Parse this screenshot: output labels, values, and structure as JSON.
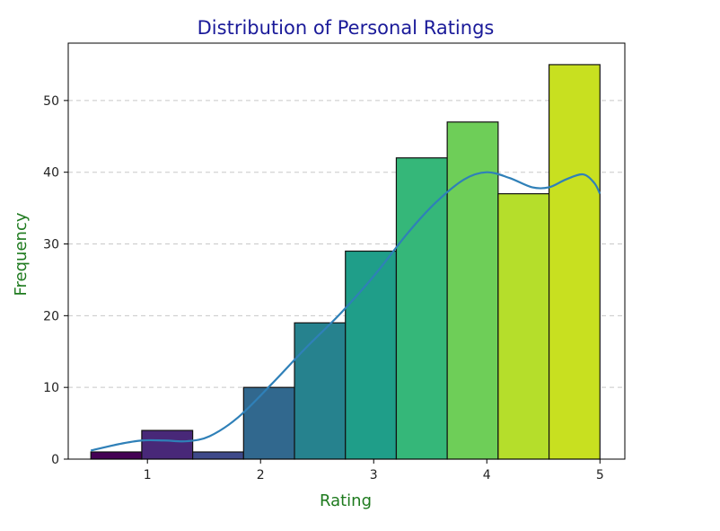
{
  "chart_data": {
    "type": "bar",
    "title": "Distribution of Personal Ratings",
    "xlabel": "Rating",
    "ylabel": "Frequency",
    "xlim": [
      0.3,
      5.22
    ],
    "ylim": [
      0,
      58
    ],
    "xticks": [
      1,
      2,
      3,
      4,
      5
    ],
    "yticks": [
      0,
      10,
      20,
      30,
      40,
      50
    ],
    "grid": "y-dashed",
    "bin_edges": [
      0.5,
      0.95,
      1.4,
      1.85,
      2.3,
      2.75,
      3.2,
      3.65,
      4.1,
      4.55,
      5.0
    ],
    "values": [
      1,
      4,
      1,
      10,
      19,
      29,
      42,
      47,
      37,
      55
    ],
    "bar_colors": [
      "#440154",
      "#482878",
      "#3e4989",
      "#31688e",
      "#26828e",
      "#1f9e89",
      "#35b779",
      "#6ece58",
      "#b5de2b",
      "#c8e020"
    ],
    "kde": {
      "color": "#2f80b8",
      "points": [
        [
          0.5,
          1.2
        ],
        [
          0.75,
          2.1
        ],
        [
          0.95,
          2.6
        ],
        [
          1.15,
          2.6
        ],
        [
          1.35,
          2.5
        ],
        [
          1.55,
          3.2
        ],
        [
          1.8,
          5.8
        ],
        [
          2.1,
          10.5
        ],
        [
          2.4,
          15.5
        ],
        [
          2.7,
          20.2
        ],
        [
          3.0,
          25.5
        ],
        [
          3.3,
          31.5
        ],
        [
          3.55,
          35.8
        ],
        [
          3.8,
          39.0
        ],
        [
          4.0,
          40.0
        ],
        [
          4.2,
          39.2
        ],
        [
          4.4,
          37.9
        ],
        [
          4.55,
          37.9
        ],
        [
          4.7,
          39.0
        ],
        [
          4.85,
          39.7
        ],
        [
          4.95,
          38.5
        ],
        [
          5.0,
          37.0
        ]
      ]
    }
  }
}
